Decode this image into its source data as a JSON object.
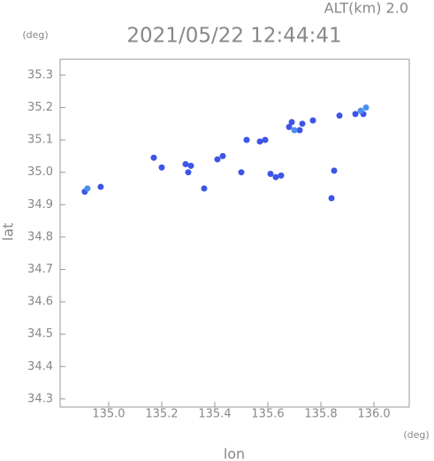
{
  "chart_data": {
    "type": "scatter",
    "annotation": "ALT(km) 2.0",
    "title": "2021/05/22 12:44:41",
    "yunit": "(deg)",
    "xunit": "(deg)",
    "xlabel": "lon",
    "ylabel": "lat",
    "xlim": [
      134.817,
      136.133
    ],
    "ylim": [
      34.275,
      35.349
    ],
    "xticks": [
      {
        "value": 135.0,
        "label": "135.0"
      },
      135.2,
      135.4,
      135.6,
      135.8,
      {
        "value": 136.0,
        "label": "136.0"
      }
    ],
    "yticks": [
      34.3,
      34.4,
      34.5,
      34.6,
      34.7,
      34.8,
      34.9,
      {
        "value": 35.0,
        "label": "35.0"
      },
      35.1,
      35.2,
      35.3
    ],
    "series": [
      {
        "color": "#3d55e6",
        "x": [
          134.91,
          134.97,
          135.17,
          135.2,
          135.29,
          135.31,
          135.3,
          135.36,
          135.41,
          135.43,
          135.5,
          135.52,
          135.57,
          135.59,
          135.61,
          135.63,
          135.65,
          135.68,
          135.72,
          135.69,
          135.73,
          135.77,
          135.84,
          135.85,
          135.87,
          135.93,
          135.96
        ],
        "values": [
          34.94,
          34.955,
          35.045,
          35.015,
          35.025,
          35.02,
          35.0,
          34.95,
          35.04,
          35.05,
          35.0,
          35.1,
          35.095,
          35.1,
          34.995,
          34.985,
          34.99,
          35.14,
          35.13,
          35.155,
          35.15,
          35.16,
          34.92,
          35.005,
          35.175,
          35.18,
          35.18
        ]
      },
      {
        "color": "#4a8ef0",
        "x": [
          134.92,
          135.7,
          135.95,
          135.97
        ],
        "values": [
          34.95,
          35.13,
          35.19,
          35.2
        ]
      }
    ]
  }
}
